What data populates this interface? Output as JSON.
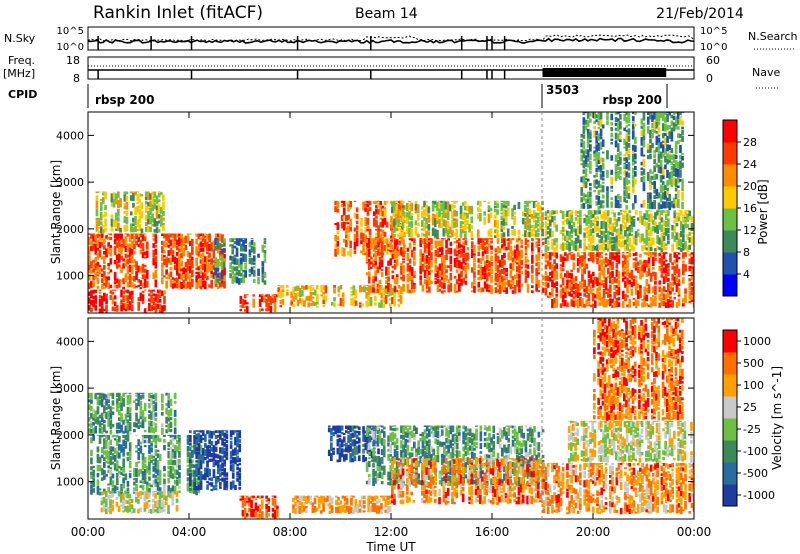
{
  "header": {
    "station": "Rankin Inlet (fitACF)",
    "beam": "Beam 14",
    "date": "21/Feb/2014"
  },
  "noise_panel": {
    "left_label": "N.Sky",
    "left_ticks": [
      "10^5",
      "10^0"
    ],
    "right_ticks": [
      "10^5",
      "10^0"
    ],
    "right_label": "N.Search"
  },
  "freq_panel": {
    "left_label_1": "Freq.",
    "left_label_2": "[MHz]",
    "left_ticks": [
      "18",
      "8"
    ],
    "right_ticks": [
      "60",
      "0"
    ],
    "right_label": "Nave"
  },
  "cpid_panel": {
    "label": "CPID",
    "segments": [
      {
        "label": "rbsp 200",
        "start_hour": 0.0,
        "end_hour": 18.0
      },
      {
        "label": "3503",
        "start_hour": 18.0,
        "end_hour": 18.1
      },
      {
        "label": "rbsp 200",
        "start_hour": 18.1,
        "end_hour": 22.9
      }
    ]
  },
  "x_axis": {
    "label": "Time UT",
    "ticks": [
      "00:00",
      "04:00",
      "08:00",
      "12:00",
      "16:00",
      "20:00",
      "00:00"
    ],
    "range_hours": [
      0,
      24
    ]
  },
  "chart_data": [
    {
      "type": "heatmap",
      "title": "",
      "xlabel": "",
      "ylabel": "Slant Range [km]",
      "xlim_hours": [
        0,
        24
      ],
      "ylim_km": [
        200,
        4500
      ],
      "y_ticks": [
        "1000",
        "2000",
        "3000",
        "4000"
      ],
      "colorbar": {
        "label": "Power [dB]",
        "ticks": [
          "4",
          "8",
          "12",
          "16",
          "20",
          "24",
          "28"
        ],
        "range": [
          0,
          32
        ],
        "colors": [
          "#0000ff",
          "#2050b0",
          "#3c8a5a",
          "#6cc044",
          "#ffc800",
          "#ff8c00",
          "#ff3c00",
          "#ff0000"
        ]
      },
      "regions": [
        {
          "t0": 0.0,
          "t1": 5.5,
          "r0": 700,
          "r1": 1900,
          "level": 0.8
        },
        {
          "t0": 0.0,
          "t1": 3.0,
          "r0": 200,
          "r1": 700,
          "level": 0.9
        },
        {
          "t0": 0.3,
          "t1": 3.0,
          "r0": 1900,
          "r1": 2800,
          "level": 0.5
        },
        {
          "t0": 5.0,
          "t1": 7.0,
          "r0": 800,
          "r1": 1800,
          "level": 0.3
        },
        {
          "t0": 6.0,
          "t1": 7.5,
          "r0": 200,
          "r1": 600,
          "level": 0.85
        },
        {
          "t0": 7.5,
          "t1": 12.5,
          "r0": 300,
          "r1": 800,
          "level": 0.6
        },
        {
          "t0": 9.5,
          "t1": 12.5,
          "r0": 1400,
          "r1": 2600,
          "level": 0.75
        },
        {
          "t0": 11.0,
          "t1": 18.0,
          "r0": 600,
          "r1": 1800,
          "level": 0.8
        },
        {
          "t0": 12.0,
          "t1": 18.0,
          "r0": 1800,
          "r1": 2600,
          "level": 0.5
        },
        {
          "t0": 18.0,
          "t1": 24.0,
          "r0": 300,
          "r1": 1500,
          "level": 0.8
        },
        {
          "t0": 18.0,
          "t1": 24.0,
          "r0": 1500,
          "r1": 2400,
          "level": 0.45
        },
        {
          "t0": 19.5,
          "t1": 23.5,
          "r0": 2400,
          "r1": 4500,
          "level": 0.35
        }
      ]
    },
    {
      "type": "heatmap",
      "title": "",
      "xlabel": "Time UT",
      "ylabel": "Slant Range [km]",
      "xlim_hours": [
        0,
        24
      ],
      "ylim_km": [
        200,
        4500
      ],
      "y_ticks": [
        "1000",
        "2000",
        "3000",
        "4000"
      ],
      "colorbar": {
        "label": "Velocity [m s^-1]",
        "ticks": [
          "1000",
          "500",
          "100",
          "25",
          "-25",
          "-100",
          "-500",
          "-1000"
        ],
        "range": [
          -1000,
          1000
        ],
        "colors": [
          "#1e3ca0",
          "#2a6ca0",
          "#3c8a5a",
          "#6cc044",
          "#c8c8c8",
          "#ffa000",
          "#ff7000",
          "#ff0000"
        ]
      },
      "regions": [
        {
          "t0": 0.0,
          "t1": 4.5,
          "r0": 700,
          "r1": 2000,
          "level": 0.35
        },
        {
          "t0": 0.5,
          "t1": 3.5,
          "r0": 300,
          "r1": 800,
          "level": 0.55
        },
        {
          "t0": 0.0,
          "t1": 3.5,
          "r0": 2000,
          "r1": 2900,
          "level": 0.35
        },
        {
          "t0": 4.0,
          "t1": 6.0,
          "r0": 800,
          "r1": 2100,
          "level": 0.05
        },
        {
          "t0": 6.0,
          "t1": 7.5,
          "r0": 200,
          "r1": 700,
          "level": 0.85
        },
        {
          "t0": 8.0,
          "t1": 12.0,
          "r0": 300,
          "r1": 700,
          "level": 0.7
        },
        {
          "t0": 9.5,
          "t1": 11.5,
          "r0": 1400,
          "r1": 2200,
          "level": 0.1
        },
        {
          "t0": 11.0,
          "t1": 18.0,
          "r0": 900,
          "r1": 2200,
          "level": 0.35
        },
        {
          "t0": 12.0,
          "t1": 18.0,
          "r0": 500,
          "r1": 1500,
          "level": 0.75
        },
        {
          "t0": 18.0,
          "t1": 24.0,
          "r0": 300,
          "r1": 1400,
          "level": 0.75
        },
        {
          "t0": 19.0,
          "t1": 24.0,
          "r0": 1400,
          "r1": 2300,
          "level": 0.55
        },
        {
          "t0": 20.0,
          "t1": 23.5,
          "r0": 2300,
          "r1": 4500,
          "level": 0.8
        }
      ]
    }
  ]
}
